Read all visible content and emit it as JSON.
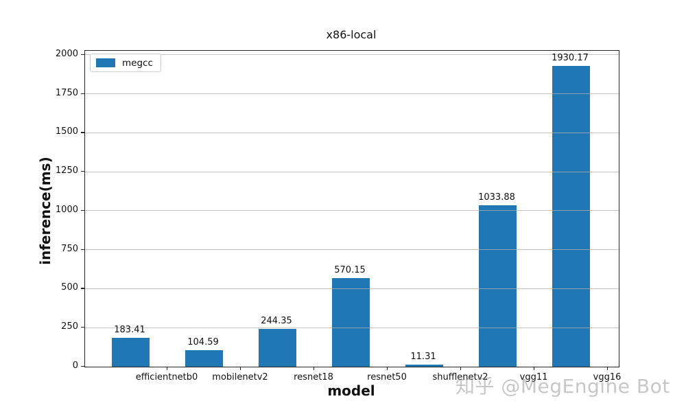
{
  "watermark": "知乎 @MegEngine Bot",
  "chart_data": {
    "type": "bar",
    "title": "x86-local",
    "xlabel": "model",
    "ylabel": "inference(ms)",
    "categories": [
      "efficientnetb0",
      "mobilenetv2",
      "resnet18",
      "resnet50",
      "shufflenetv2",
      "vgg11",
      "vgg16"
    ],
    "series": [
      {
        "name": "megcc",
        "color": "#2077b4",
        "values": [
          183.41,
          104.59,
          244.35,
          570.15,
          11.31,
          1033.88,
          1930.17
        ]
      }
    ],
    "value_labels": [
      "183.41",
      "104.59",
      "244.35",
      "570.15",
      "11.31",
      "1033.88",
      "1930.17"
    ],
    "yticks": [
      0,
      250,
      500,
      750,
      1000,
      1250,
      1500,
      1750,
      2000
    ],
    "ylim": [
      0,
      2026
    ],
    "grid": true,
    "legend_position": "upper left"
  }
}
